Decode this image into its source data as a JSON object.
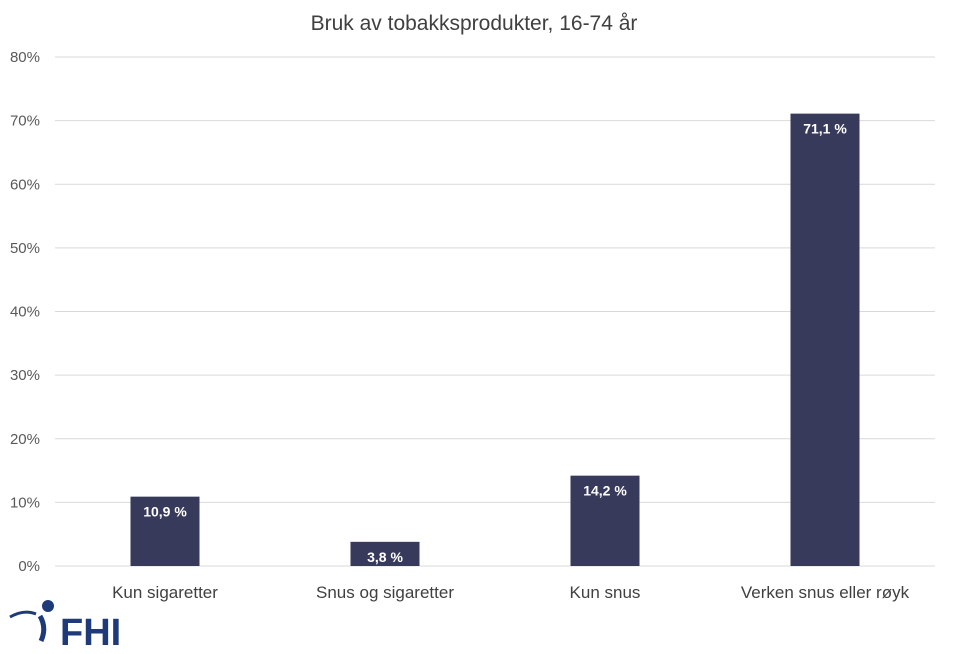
{
  "chart_data": {
    "type": "bar",
    "title": "Bruk av  tobakksprodukter, 16-74 år",
    "categories": [
      "Kun sigaretter",
      "Snus og sigaretter",
      "Kun snus",
      "Verken snus eller røyk"
    ],
    "values": [
      10.9,
      3.8,
      14.2,
      71.1
    ],
    "data_labels": [
      "10,9 %",
      "3,8 %",
      "14,2 %",
      "71,1 %"
    ],
    "yticks": [
      "0%",
      "10%",
      "20%",
      "30%",
      "40%",
      "50%",
      "60%",
      "70%",
      "80%"
    ],
    "ylim": [
      0,
      80
    ],
    "xlabel": "",
    "ylabel": "",
    "grid": true,
    "colors": {
      "bar": "#383a5c",
      "grid": "#d9d9d9"
    }
  },
  "logo": {
    "text": "FHI",
    "color": "#1e3a78"
  }
}
